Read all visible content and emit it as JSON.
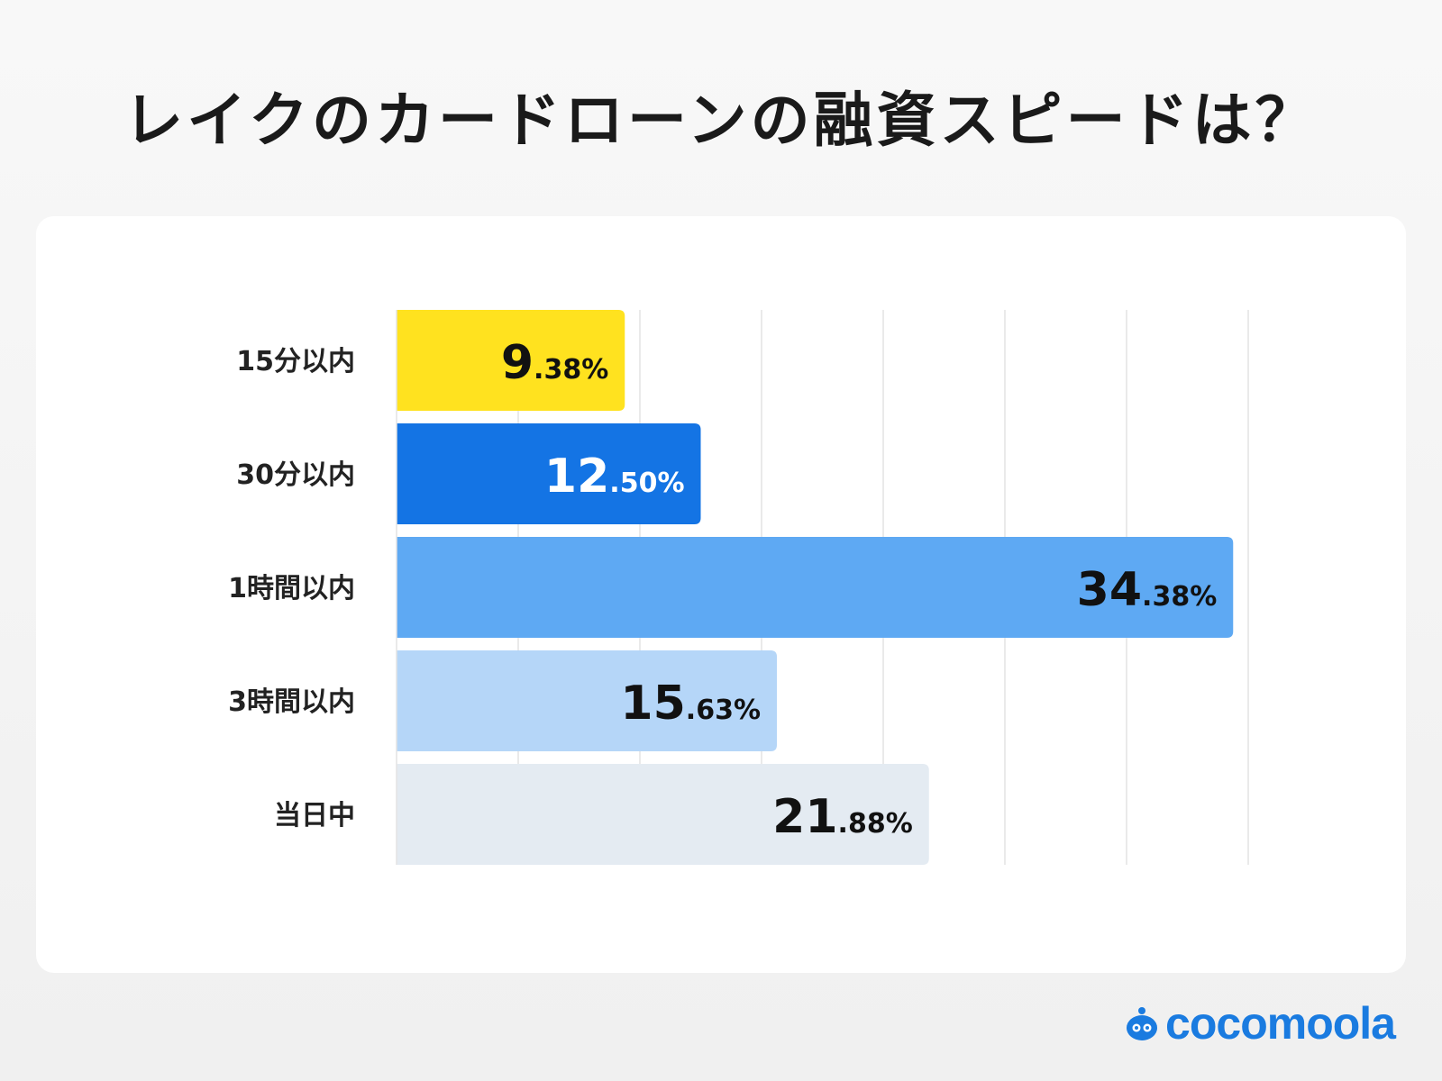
{
  "title": "レイクのカードローンの融資スピードは？",
  "logo": {
    "text": "cocomoola"
  },
  "chart_data": {
    "type": "bar",
    "orientation": "horizontal",
    "title": "レイクのカードローンの融資スピードは？",
    "xlim": [
      0,
      35
    ],
    "grid": true,
    "legend": "none",
    "unit": "%",
    "categories": [
      "15分以内",
      "30分以内",
      "1時間以内",
      "3時間以内",
      "当日中"
    ],
    "values": [
      9.38,
      12.5,
      34.38,
      15.63,
      21.88
    ],
    "data_labels": [
      {
        "int": "9",
        "dec": ".38%"
      },
      {
        "int": "12",
        "dec": ".50%"
      },
      {
        "int": "34",
        "dec": ".38%"
      },
      {
        "int": "15",
        "dec": ".63%"
      },
      {
        "int": "21",
        "dec": ".88%"
      }
    ],
    "colors": [
      "#ffe21f",
      "#1474e4",
      "#5ea9f3",
      "#b5d6f8",
      "#e4ebf2"
    ],
    "label_colors": [
      "#111111",
      "#ffffff",
      "#111111",
      "#111111",
      "#111111"
    ]
  }
}
